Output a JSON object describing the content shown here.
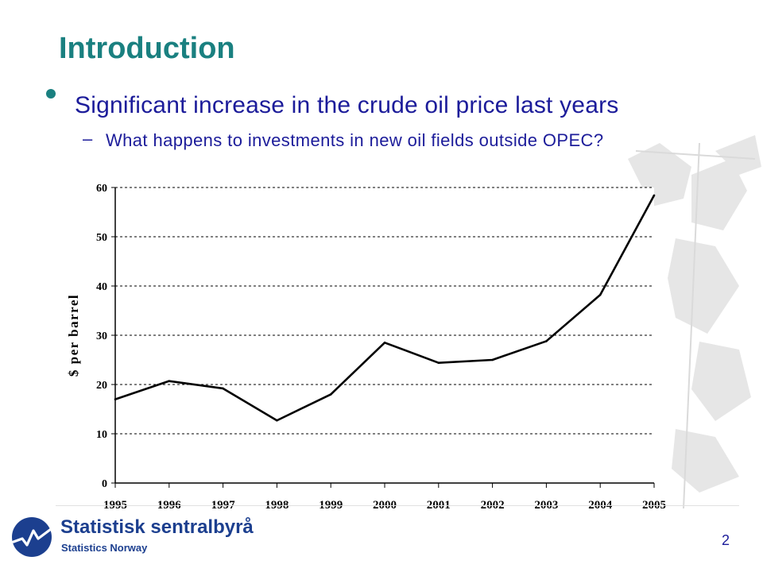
{
  "slide": {
    "title": "Introduction",
    "bullet": "Significant increase in the crude oil price last years",
    "sub_bullet_marker": "–",
    "sub_bullet": "What happens to investments in new oil fields outside OPEC?",
    "page_number": "2"
  },
  "logo": {
    "name": "Statistisk sentralbyrå",
    "subtitle": "Statistics Norway",
    "icon": "ssb-globe-logo-icon"
  },
  "colors": {
    "title": "#1a8080",
    "text": "#1c1c9a",
    "logo": "#1c3f8f",
    "line": "#000000"
  },
  "chart_data": {
    "type": "line",
    "title": "",
    "xlabel": "",
    "ylabel": "$ per barrel",
    "categories": [
      "1995",
      "1996",
      "1997",
      "1998",
      "1999",
      "2000",
      "2001",
      "2002",
      "2003",
      "2004",
      "2005"
    ],
    "series": [
      {
        "values": [
          17.0,
          20.7,
          19.2,
          12.7,
          18.0,
          28.5,
          24.4,
          25.0,
          28.8,
          38.2,
          58.4
        ]
      }
    ],
    "yticks": [
      "0",
      "10",
      "20",
      "30",
      "40",
      "50",
      "60"
    ],
    "ylim": [
      0,
      60
    ],
    "grid": "horizontal dashed"
  }
}
